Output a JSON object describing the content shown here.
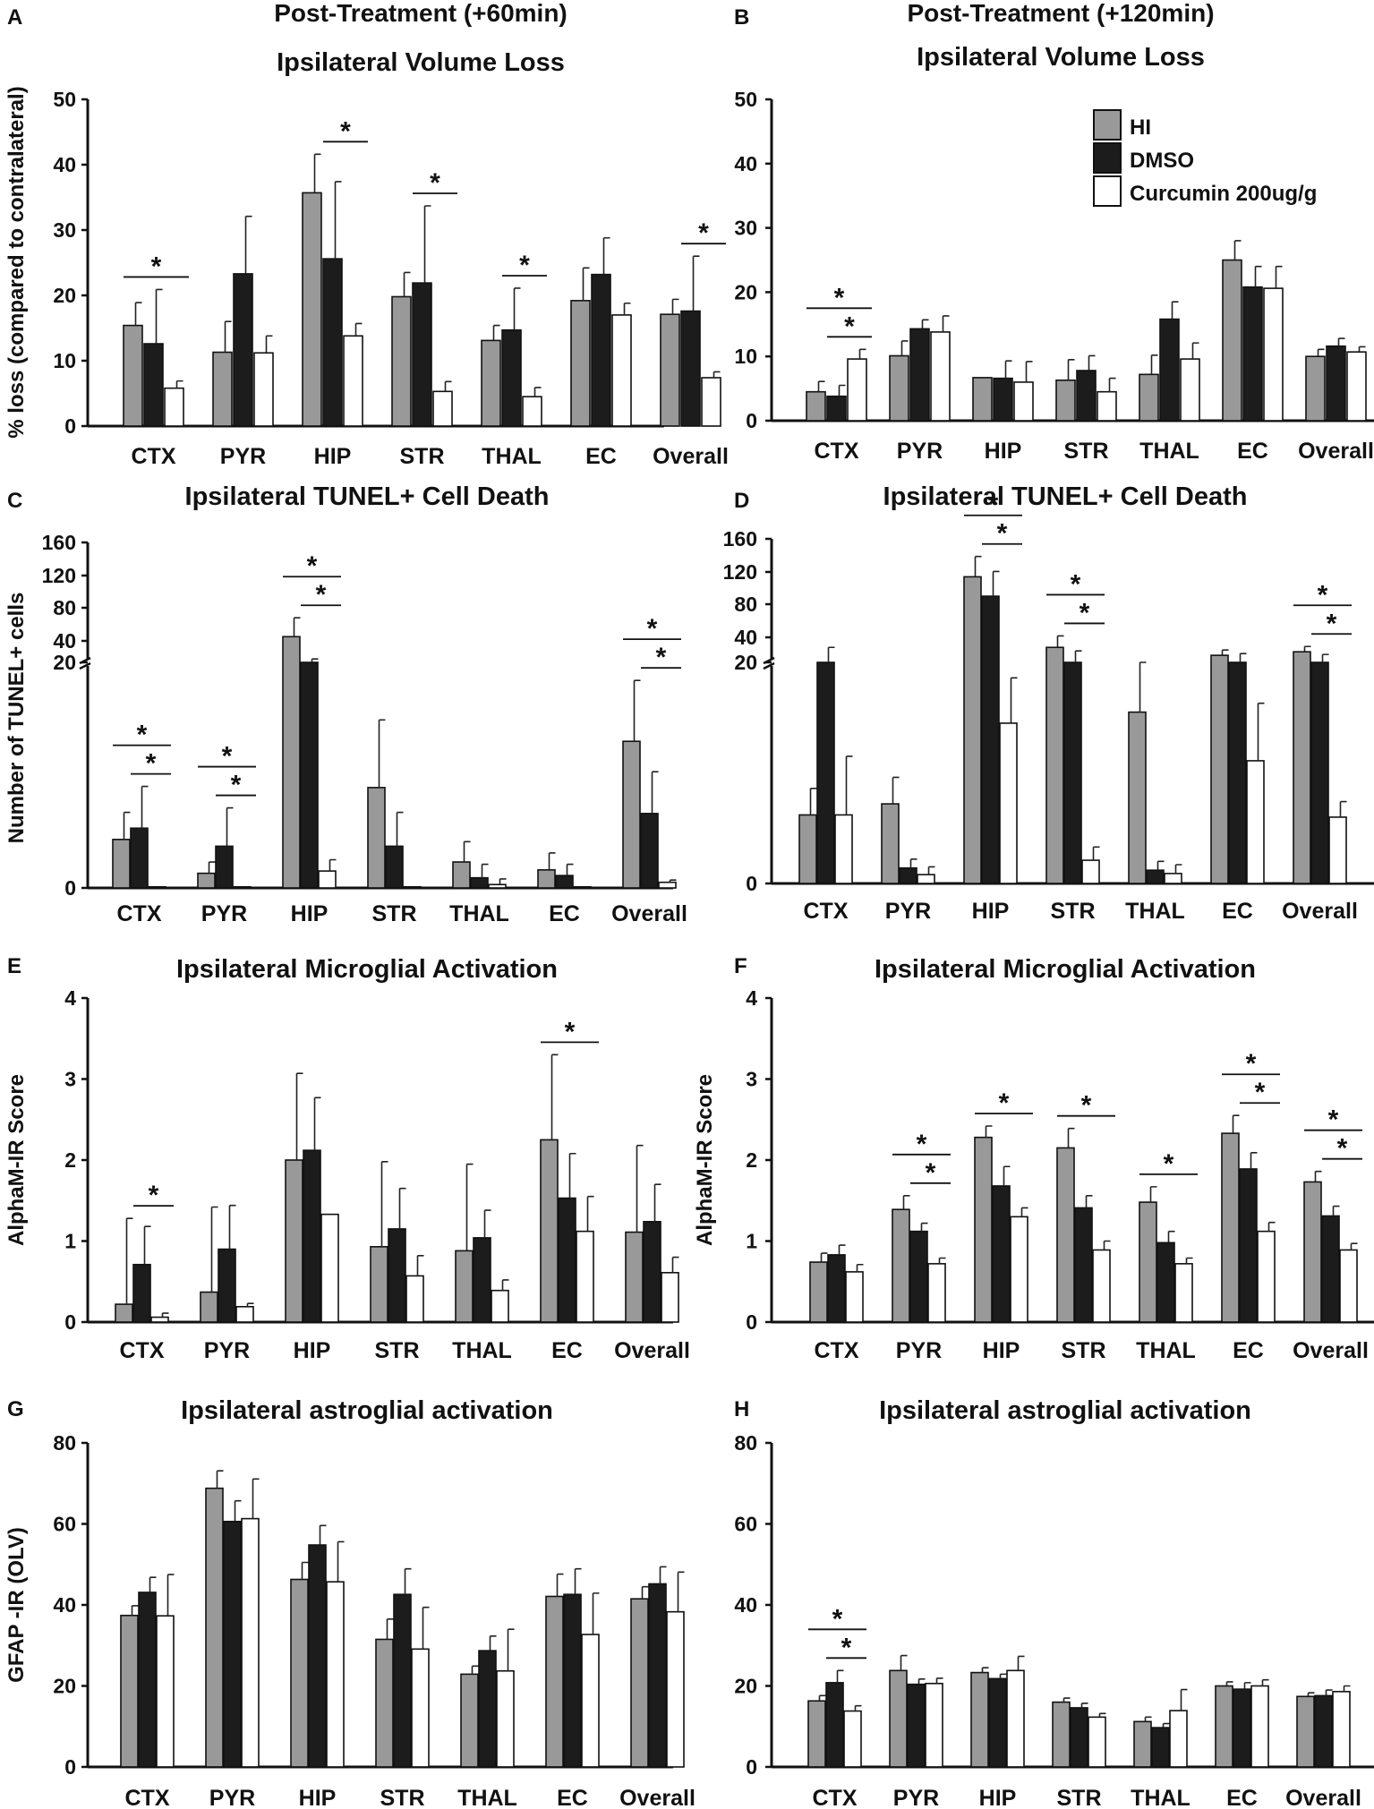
{
  "chart_data": [
    {
      "panel": "A",
      "type": "bar",
      "header": "Post-Treatment (+60min)",
      "title": "Ipsilateral Volume Loss",
      "ylabel": "% loss (compared to contralateral)",
      "ylim": [
        0,
        50
      ],
      "yticks": [
        0,
        10,
        20,
        30,
        40,
        50
      ],
      "categories": [
        "CTX",
        "PYR",
        "HIP",
        "STR",
        "THAL",
        "EC",
        "Overall"
      ],
      "series": [
        {
          "name": "HI",
          "values": [
            15.4,
            11.3,
            35.7,
            19.8,
            13.1,
            19.2,
            17.1
          ],
          "errors": [
            3.5,
            4.7,
            5.9,
            3.7,
            2.3,
            5.0,
            2.3
          ]
        },
        {
          "name": "DMSO",
          "values": [
            12.6,
            23.3,
            25.6,
            21.9,
            14.7,
            23.2,
            17.6
          ],
          "errors": [
            8.3,
            8.8,
            11.8,
            11.8,
            6.4,
            5.6,
            8.4
          ]
        },
        {
          "name": "Curcumin 200ug/g",
          "values": [
            5.8,
            11.2,
            13.8,
            5.3,
            4.5,
            17.0,
            7.4
          ],
          "errors": [
            1.1,
            2.6,
            1.9,
            1.5,
            1.4,
            1.8,
            0.9
          ]
        }
      ],
      "significance": [
        {
          "category": "CTX",
          "pair": [
            "HI",
            "Curcumin 200ug/g"
          ],
          "label": "*"
        },
        {
          "category": "HIP",
          "pair": [
            "DMSO",
            "Curcumin 200ug/g"
          ],
          "label": "*"
        },
        {
          "category": "STR",
          "pair": [
            "DMSO",
            "Curcumin 200ug/g"
          ],
          "label": "*"
        },
        {
          "category": "THAL",
          "pair": [
            "DMSO",
            "Curcumin 200ug/g"
          ],
          "label": "*"
        },
        {
          "category": "Overall",
          "pair": [
            "DMSO",
            "Curcumin 200ug/g"
          ],
          "label": "*"
        }
      ]
    },
    {
      "panel": "B",
      "type": "bar",
      "header": "Post-Treatment (+120min)",
      "title": "Ipsilateral Volume Loss",
      "ylabel": "",
      "ylim": [
        0,
        50
      ],
      "yticks": [
        0,
        10,
        20,
        30,
        40,
        50
      ],
      "categories": [
        "CTX",
        "PYR",
        "HIP",
        "STR",
        "THAL",
        "EC",
        "Overall"
      ],
      "legend": {
        "position": "top-right",
        "entries": [
          "HI",
          "DMSO",
          "Curcumin 200ug/g"
        ]
      },
      "series": [
        {
          "name": "HI",
          "values": [
            4.5,
            10.1,
            6.7,
            6.3,
            7.2,
            25.0,
            10.0
          ],
          "errors": [
            1.6,
            2.3,
            0.0,
            3.2,
            3.0,
            3.0,
            1.1
          ]
        },
        {
          "name": "DMSO",
          "values": [
            3.8,
            14.3,
            6.6,
            7.8,
            15.8,
            20.8,
            11.6
          ],
          "errors": [
            1.7,
            1.4,
            2.7,
            2.3,
            2.7,
            3.2,
            1.2
          ]
        },
        {
          "name": "Curcumin 200ug/g",
          "values": [
            9.6,
            13.8,
            6.0,
            4.5,
            9.6,
            20.6,
            10.7
          ],
          "errors": [
            1.5,
            2.5,
            3.2,
            2.1,
            2.5,
            3.4,
            0.8
          ]
        }
      ],
      "significance": [
        {
          "category": "CTX",
          "pair": [
            "HI",
            "Curcumin 200ug/g"
          ],
          "label": "*"
        },
        {
          "category": "CTX",
          "pair": [
            "DMSO",
            "Curcumin 200ug/g"
          ],
          "label": "*"
        }
      ]
    },
    {
      "panel": "C",
      "type": "bar",
      "title": "Ipsilateral TUNEL+ Cell Death",
      "ylabel": "Number of TUNEL+ cells",
      "ylim": [
        0,
        160
      ],
      "yaxis_break": 20,
      "yticks": [
        0,
        20,
        40,
        80,
        120,
        160
      ],
      "categories": [
        "CTX",
        "PYR",
        "HIP",
        "STR",
        "THAL",
        "EC",
        "Overall"
      ],
      "series": [
        {
          "name": "HI",
          "values": [
            4.3,
            1.3,
            50,
            8.9,
            2.3,
            1.6,
            13.0
          ],
          "errors": [
            2.4,
            1.0,
            22,
            6.0,
            1.8,
            1.5,
            5.4
          ]
        },
        {
          "name": "DMSO",
          "values": [
            5.3,
            3.7,
            20,
            3.7,
            0.9,
            1.1,
            6.6
          ],
          "errors": [
            3.7,
            3.4,
            4,
            3.0,
            1.2,
            1.0,
            3.7
          ]
        },
        {
          "name": "Curcumin 200ug/g",
          "values": [
            0.1,
            0.1,
            1.5,
            0.1,
            0.3,
            0.1,
            0.5
          ],
          "errors": [
            0.0,
            0.0,
            1.0,
            0.0,
            0.5,
            0.0,
            0.2
          ]
        }
      ],
      "significance": [
        {
          "category": "CTX",
          "pair": [
            "HI",
            "Curcumin 200ug/g"
          ],
          "label": "*"
        },
        {
          "category": "CTX",
          "pair": [
            "DMSO",
            "Curcumin 200ug/g"
          ],
          "label": "*"
        },
        {
          "category": "PYR",
          "pair": [
            "HI",
            "Curcumin 200ug/g"
          ],
          "label": "*"
        },
        {
          "category": "PYR",
          "pair": [
            "DMSO",
            "Curcumin 200ug/g"
          ],
          "label": "*"
        },
        {
          "category": "HIP",
          "pair": [
            "HI",
            "Curcumin 200ug/g"
          ],
          "label": "*"
        },
        {
          "category": "HIP",
          "pair": [
            "DMSO",
            "Curcumin 200ug/g"
          ],
          "label": "*"
        },
        {
          "category": "Overall",
          "pair": [
            "HI",
            "Curcumin 200ug/g"
          ],
          "label": "*"
        },
        {
          "category": "Overall",
          "pair": [
            "DMSO",
            "Curcumin 200ug/g"
          ],
          "label": "*"
        }
      ]
    },
    {
      "panel": "D",
      "type": "bar",
      "title": "Ipsilateral TUNEL+ Cell Death",
      "ylabel": "",
      "ylim": [
        0,
        160
      ],
      "yaxis_break": 20,
      "yticks": [
        0,
        20,
        40,
        80,
        120,
        160
      ],
      "categories": [
        "CTX",
        "PYR",
        "HIP",
        "STR",
        "THAL",
        "EC",
        "Overall"
      ],
      "series": [
        {
          "name": "HI",
          "values": [
            6.2,
            7.2,
            117,
            37,
            15.5,
            28,
            32
          ],
          "errors": [
            2.4,
            2.4,
            23,
            13,
            4.5,
            6,
            6
          ]
        },
        {
          "name": "DMSO",
          "values": [
            20,
            1.4,
            95,
            20,
            1.2,
            20,
            20
          ],
          "errors": [
            17,
            0.8,
            28,
            13,
            0.8,
            10,
            9
          ]
        },
        {
          "name": "Curcumin 200ug/g",
          "values": [
            6.2,
            0.8,
            14.5,
            2.1,
            0.9,
            11.1,
            6.0
          ],
          "errors": [
            5.3,
            0.7,
            4.1,
            1.2,
            0.8,
            5.2,
            1.4
          ]
        }
      ],
      "significance": [
        {
          "category": "HIP",
          "pair": [
            "HI",
            "Curcumin 200ug/g"
          ],
          "label": "*"
        },
        {
          "category": "HIP",
          "pair": [
            "DMSO",
            "Curcumin 200ug/g"
          ],
          "label": "*"
        },
        {
          "category": "STR",
          "pair": [
            "HI",
            "Curcumin 200ug/g"
          ],
          "label": "*"
        },
        {
          "category": "STR",
          "pair": [
            "DMSO",
            "Curcumin 200ug/g"
          ],
          "label": "*"
        },
        {
          "category": "Overall",
          "pair": [
            "HI",
            "Curcumin 200ug/g"
          ],
          "label": "*"
        },
        {
          "category": "Overall",
          "pair": [
            "DMSO",
            "Curcumin 200ug/g"
          ],
          "label": "*"
        }
      ]
    },
    {
      "panel": "E",
      "type": "bar",
      "title": "Ipsilateral Microglial Activation",
      "ylabel": "AlphaM-IR Score",
      "ylim": [
        0,
        4
      ],
      "yticks": [
        0,
        1,
        2,
        3,
        4
      ],
      "categories": [
        "CTX",
        "PYR",
        "HIP",
        "STR",
        "THAL",
        "EC",
        "Overall"
      ],
      "series": [
        {
          "name": "HI",
          "values": [
            0.22,
            0.37,
            2.0,
            0.93,
            0.88,
            2.25,
            1.11
          ],
          "errors": [
            1.06,
            1.05,
            1.07,
            1.05,
            1.07,
            1.05,
            1.07
          ]
        },
        {
          "name": "DMSO",
          "values": [
            0.71,
            0.9,
            2.12,
            1.15,
            1.04,
            1.53,
            1.24
          ],
          "errors": [
            0.47,
            0.54,
            0.65,
            0.5,
            0.34,
            0.55,
            0.46
          ]
        },
        {
          "name": "Curcumin 200ug/g",
          "values": [
            0.06,
            0.19,
            1.33,
            0.57,
            0.39,
            1.12,
            0.61
          ],
          "errors": [
            0.05,
            0.04,
            0.0,
            0.25,
            0.13,
            0.43,
            0.19
          ]
        }
      ],
      "significance": [
        {
          "category": "CTX",
          "pair": [
            "DMSO",
            "Curcumin 200ug/g"
          ],
          "label": "*"
        },
        {
          "category": "EC",
          "pair": [
            "HI",
            "Curcumin 200ug/g"
          ],
          "label": "*"
        }
      ]
    },
    {
      "panel": "F",
      "type": "bar",
      "title": "Ipsilateral Microglial Activation",
      "ylabel": "AlphaM-IR Score",
      "ylim": [
        0,
        4
      ],
      "yticks": [
        0,
        1,
        2,
        3,
        4
      ],
      "categories": [
        "CTX",
        "PYR",
        "HIP",
        "STR",
        "THAL",
        "EC",
        "Overall"
      ],
      "series": [
        {
          "name": "HI",
          "values": [
            0.74,
            1.39,
            2.28,
            2.15,
            1.48,
            2.33,
            1.73
          ],
          "errors": [
            0.11,
            0.17,
            0.14,
            0.24,
            0.19,
            0.22,
            0.13
          ]
        },
        {
          "name": "DMSO",
          "values": [
            0.83,
            1.12,
            1.68,
            1.41,
            0.98,
            1.89,
            1.31
          ],
          "errors": [
            0.12,
            0.1,
            0.24,
            0.15,
            0.14,
            0.2,
            0.12
          ]
        },
        {
          "name": "Curcumin 200ug/g",
          "values": [
            0.62,
            0.72,
            1.3,
            0.89,
            0.72,
            1.12,
            0.89
          ],
          "errors": [
            0.09,
            0.07,
            0.11,
            0.11,
            0.07,
            0.11,
            0.08
          ]
        }
      ],
      "significance": [
        {
          "category": "PYR",
          "pair": [
            "HI",
            "Curcumin 200ug/g"
          ],
          "label": "*"
        },
        {
          "category": "PYR",
          "pair": [
            "DMSO",
            "Curcumin 200ug/g"
          ],
          "label": "*"
        },
        {
          "category": "HIP",
          "pair": [
            "HI",
            "Curcumin 200ug/g"
          ],
          "label": "*"
        },
        {
          "category": "STR",
          "pair": [
            "HI",
            "Curcumin 200ug/g"
          ],
          "label": "*"
        },
        {
          "category": "THAL",
          "pair": [
            "HI",
            "Curcumin 200ug/g"
          ],
          "label": "*"
        },
        {
          "category": "EC",
          "pair": [
            "HI",
            "Curcumin 200ug/g"
          ],
          "label": "*"
        },
        {
          "category": "EC",
          "pair": [
            "DMSO",
            "Curcumin 200ug/g"
          ],
          "label": "*"
        },
        {
          "category": "Overall",
          "pair": [
            "HI",
            "Curcumin 200ug/g"
          ],
          "label": "*"
        },
        {
          "category": "Overall",
          "pair": [
            "DMSO",
            "Curcumin 200ug/g"
          ],
          "label": "*"
        }
      ]
    },
    {
      "panel": "G",
      "type": "bar",
      "title": "Ipsilateral astroglial activation",
      "ylabel": "GFAP -IR (OLV)",
      "ylim": [
        0,
        80
      ],
      "yticks": [
        0,
        20,
        40,
        60,
        80
      ],
      "categories": [
        "CTX",
        "PYR",
        "HIP",
        "STR",
        "THAL",
        "EC",
        "Overall"
      ],
      "series": [
        {
          "name": "HI",
          "values": [
            37.4,
            68.8,
            46.3,
            31.5,
            22.9,
            42.1,
            41.5
          ],
          "errors": [
            2.4,
            4.3,
            4.2,
            5.0,
            2.0,
            5.5,
            3.0
          ]
        },
        {
          "name": "DMSO",
          "values": [
            43.1,
            60.6,
            54.8,
            42.6,
            28.7,
            42.6,
            45.2
          ],
          "errors": [
            3.7,
            5.1,
            4.8,
            6.3,
            3.6,
            6.3,
            4.2
          ]
        },
        {
          "name": "Curcumin 200ug/g",
          "values": [
            37.3,
            61.3,
            45.7,
            29.1,
            23.7,
            32.7,
            38.3
          ],
          "errors": [
            10.2,
            9.8,
            9.9,
            10.3,
            10.3,
            10.2,
            9.8
          ]
        }
      ],
      "significance": []
    },
    {
      "panel": "H",
      "type": "bar",
      "title": "Ipsilateral astroglial activation",
      "ylabel": "",
      "ylim": [
        0,
        80
      ],
      "yticks": [
        0,
        20,
        40,
        60,
        80
      ],
      "categories": [
        "CTX",
        "PYR",
        "HIP",
        "STR",
        "THAL",
        "EC",
        "Overall"
      ],
      "series": [
        {
          "name": "HI",
          "values": [
            16.3,
            23.8,
            23.3,
            16.0,
            11.2,
            20.0,
            17.4
          ],
          "errors": [
            1.3,
            3.7,
            1.2,
            1.0,
            1.1,
            1.0,
            0.9
          ]
        },
        {
          "name": "DMSO",
          "values": [
            20.8,
            20.4,
            21.8,
            14.6,
            9.7,
            19.2,
            17.6
          ],
          "errors": [
            3.0,
            1.3,
            1.1,
            1.1,
            1.0,
            1.6,
            1.4
          ]
        },
        {
          "name": "Curcumin 200ug/g",
          "values": [
            13.8,
            20.6,
            23.8,
            12.3,
            13.9,
            20.0,
            18.6
          ],
          "errors": [
            1.3,
            1.3,
            3.5,
            0.9,
            5.2,
            1.5,
            1.4
          ]
        }
      ],
      "significance": [
        {
          "category": "CTX",
          "pair": [
            "HI",
            "Curcumin 200ug/g"
          ],
          "label": "*"
        },
        {
          "category": "CTX",
          "pair": [
            "DMSO",
            "Curcumin 200ug/g"
          ],
          "label": "*"
        }
      ]
    }
  ],
  "colors": {
    "HI": "#999999",
    "DMSO": "#1c1c1c",
    "Curcumin 200ug/g": "#ffffff",
    "axis": "#111111"
  }
}
